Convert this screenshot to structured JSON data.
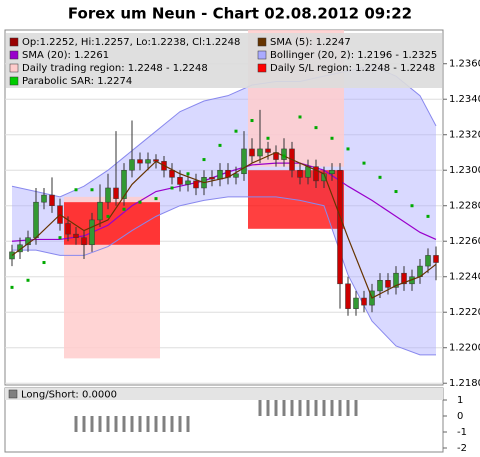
{
  "chart_data": {
    "type": "candlestick",
    "title": "Forex um Neun - Chart 02.08.2012 09:22",
    "ylim": [
      1.2179,
      1.2379
    ],
    "yticks": [
      {
        "value": 1.218,
        "label": "1.2180"
      },
      {
        "value": 1.22,
        "label": "1.2200"
      },
      {
        "value": 1.222,
        "label": "1.2220"
      },
      {
        "value": 1.224,
        "label": "1.2240"
      },
      {
        "value": 1.226,
        "label": "1.2260"
      },
      {
        "value": 1.228,
        "label": "1.2280"
      },
      {
        "value": 1.23,
        "label": "1.2300"
      },
      {
        "value": 1.232,
        "label": "1.2320"
      },
      {
        "value": 1.234,
        "label": "1.2340"
      },
      {
        "value": 1.236,
        "label": "1.2360"
      }
    ],
    "grid": true,
    "up_color": "#339933",
    "down_color": "#cc0000",
    "open": [
      1.225,
      1.2254,
      1.2258,
      1.2262,
      1.2282,
      1.2286,
      1.228,
      1.227,
      1.2264,
      1.2262,
      1.2258,
      1.2272,
      1.2282,
      1.229,
      1.2284,
      1.23,
      1.2306,
      1.2304,
      1.2306,
      1.2305,
      1.23,
      1.2296,
      1.2292,
      1.2294,
      1.229,
      1.2296,
      1.2295,
      1.23,
      1.2296,
      1.2298,
      1.2312,
      1.2308,
      1.2312,
      1.231,
      1.2306,
      1.2312,
      1.23,
      1.2296,
      1.2302,
      1.2294,
      1.2298,
      1.23,
      1.2236,
      1.2222,
      1.2228,
      1.2224,
      1.2232,
      1.2238,
      1.2234,
      1.2242,
      1.2236,
      1.224,
      1.2246,
      1.2252
    ],
    "high": [
      1.2258,
      1.2262,
      1.2266,
      1.229,
      1.229,
      1.2296,
      1.2284,
      1.2274,
      1.2268,
      1.2266,
      1.2276,
      1.2292,
      1.2298,
      1.2322,
      1.2304,
      1.2328,
      1.231,
      1.231,
      1.2309,
      1.2308,
      1.2304,
      1.23,
      1.2298,
      1.2298,
      1.23,
      1.23,
      1.2304,
      1.2304,
      1.2302,
      1.2322,
      1.2318,
      1.2334,
      1.2316,
      1.2314,
      1.2318,
      1.2316,
      1.2304,
      1.2306,
      1.2306,
      1.2302,
      1.2304,
      1.2304,
      1.224,
      1.2232,
      1.2232,
      1.2236,
      1.2242,
      1.2242,
      1.2246,
      1.2246,
      1.2244,
      1.225,
      1.2256,
      1.2257
    ],
    "low": [
      1.2246,
      1.225,
      1.2254,
      1.2258,
      1.2278,
      1.2276,
      1.2266,
      1.226,
      1.2258,
      1.225,
      1.2254,
      1.2268,
      1.2278,
      1.228,
      1.228,
      1.2296,
      1.23,
      1.23,
      1.2301,
      1.2296,
      1.2292,
      1.2288,
      1.2288,
      1.2286,
      1.2286,
      1.2291,
      1.2291,
      1.2292,
      1.2292,
      1.2294,
      1.2304,
      1.2304,
      1.2306,
      1.2302,
      1.2302,
      1.2296,
      1.2292,
      1.2292,
      1.229,
      1.229,
      1.2294,
      1.2222,
      1.2218,
      1.2218,
      1.222,
      1.222,
      1.2228,
      1.223,
      1.223,
      1.2232,
      1.2232,
      1.2236,
      1.2242,
      1.2238
    ],
    "close": [
      1.2254,
      1.2258,
      1.2262,
      1.2282,
      1.2286,
      1.228,
      1.227,
      1.2264,
      1.2262,
      1.2258,
      1.2272,
      1.2282,
      1.229,
      1.2284,
      1.23,
      1.2306,
      1.2304,
      1.2306,
      1.2305,
      1.23,
      1.2296,
      1.2292,
      1.2294,
      1.229,
      1.2296,
      1.2295,
      1.23,
      1.2296,
      1.2298,
      1.2312,
      1.2308,
      1.2312,
      1.231,
      1.2306,
      1.2312,
      1.23,
      1.2296,
      1.2302,
      1.2294,
      1.2298,
      1.23,
      1.2236,
      1.2222,
      1.2228,
      1.2224,
      1.2232,
      1.2238,
      1.2234,
      1.2242,
      1.2236,
      1.224,
      1.2246,
      1.2252,
      1.2248
    ],
    "trading_regions": {
      "color": "#ffcccc",
      "items": [
        {
          "x": [
            7,
            18
          ],
          "y": [
            1.2194,
            1.2285
          ]
        },
        {
          "x": [
            30,
            41
          ],
          "y": [
            1.2302,
            1.2379
          ]
        }
      ]
    },
    "sl_regions": {
      "color": "#ff0000",
      "items": [
        {
          "x": [
            7,
            18
          ],
          "y": [
            1.2258,
            1.2282
          ]
        },
        {
          "x": [
            30,
            41
          ],
          "y": [
            1.2267,
            1.23
          ]
        }
      ]
    },
    "bollinger": {
      "color": "#aaaaff",
      "x": [
        0,
        3,
        6,
        9,
        12,
        15,
        18,
        21,
        24,
        27,
        30,
        33,
        36,
        39,
        42,
        45,
        48,
        51,
        53
      ],
      "upper": [
        1.2291,
        1.2288,
        1.2285,
        1.2291,
        1.23,
        1.2311,
        1.2322,
        1.2333,
        1.2339,
        1.2342,
        1.2348,
        1.235,
        1.235,
        1.2353,
        1.2356,
        1.2359,
        1.2353,
        1.2342,
        1.2325
      ],
      "lower": [
        1.2255,
        1.2255,
        1.2252,
        1.2252,
        1.2257,
        1.2266,
        1.2274,
        1.228,
        1.2283,
        1.2285,
        1.2285,
        1.2285,
        1.2283,
        1.228,
        1.2241,
        1.2215,
        1.2201,
        1.2196,
        1.2196
      ]
    },
    "sma20": {
      "color": "#9900cc",
      "x": [
        0,
        3,
        6,
        9,
        12,
        15,
        18,
        21,
        24,
        27,
        30,
        33,
        36,
        39,
        42,
        45,
        48,
        51,
        53
      ],
      "values": [
        1.226,
        1.2261,
        1.2261,
        1.2263,
        1.2269,
        1.228,
        1.2288,
        1.2291,
        1.2294,
        1.2299,
        1.2303,
        1.2304,
        1.2304,
        1.23,
        1.2291,
        1.2283,
        1.2274,
        1.2265,
        1.2261
      ]
    },
    "sma5": {
      "color": "#663300",
      "x": [
        0,
        3,
        6,
        9,
        12,
        15,
        18,
        21,
        24,
        27,
        30,
        33,
        36,
        39,
        42,
        45,
        48,
        51,
        53
      ],
      "values": [
        1.2252,
        1.2262,
        1.2275,
        1.2266,
        1.2272,
        1.2292,
        1.2305,
        1.2298,
        1.2293,
        1.2296,
        1.2304,
        1.231,
        1.2304,
        1.2298,
        1.2262,
        1.2228,
        1.2235,
        1.224,
        1.2247
      ]
    },
    "sar": {
      "color": "#00aa00",
      "x": [
        0,
        2,
        4,
        6,
        8,
        10,
        12,
        14,
        16,
        18,
        20,
        22,
        24,
        26,
        28,
        30,
        32,
        34,
        36,
        38,
        40,
        42,
        44,
        46,
        48,
        50,
        52
      ],
      "values": [
        1.2234,
        1.2238,
        1.2248,
        1.2262,
        1.2289,
        1.2289,
        1.2274,
        1.2278,
        1.2282,
        1.2284,
        1.229,
        1.2298,
        1.2306,
        1.2314,
        1.2322,
        1.2328,
        1.2318,
        1.2308,
        1.233,
        1.2324,
        1.2318,
        1.2312,
        1.2304,
        1.2296,
        1.2288,
        1.228,
        1.2274
      ]
    },
    "legend": [
      {
        "label": "Op:1.2252, Hi:1.2257, Lo:1.2238, Cl:1.2248",
        "color": "#990000"
      },
      {
        "label": "SMA (5): 1.2247",
        "color": "#663300"
      },
      {
        "label": "SMA (20): 1.2261",
        "color": "#9900cc"
      },
      {
        "label": "Bollinger (20, 2): 1.2196 - 1.2325",
        "color": "#aaaaff"
      },
      {
        "label": "Daily trading region: 1.2248 - 1.2248",
        "color": "#ffcccc"
      },
      {
        "label": "Daily S/L region: 1.2248 - 1.2248",
        "color": "#ff0000"
      },
      {
        "label": "Parabolic SAR: 1.2274",
        "color": "#00cc00"
      }
    ],
    "indicator": {
      "label": "Long/Short: 0.0000",
      "color": "#808080",
      "ylim": [
        -2.25,
        1.75
      ],
      "yticks": [
        1,
        0,
        -1,
        -2
      ],
      "values": [
        0,
        0,
        0,
        0,
        0,
        0,
        0,
        0,
        -1,
        -1,
        -1,
        -1,
        -1,
        -1,
        -1,
        -1,
        -1,
        -1,
        -1,
        -1,
        -1,
        -1,
        -1,
        0,
        0,
        0,
        0,
        0,
        0,
        0,
        0,
        1,
        1,
        1,
        1,
        1,
        1,
        1,
        1,
        1,
        1,
        1,
        1,
        1,
        0,
        0,
        0,
        0,
        0,
        0,
        0,
        0,
        0,
        0
      ]
    }
  }
}
